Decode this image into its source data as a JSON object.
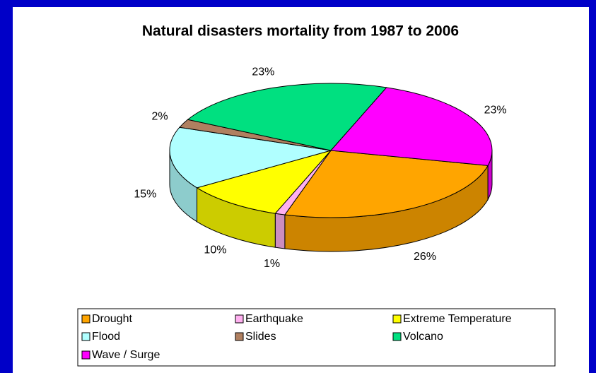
{
  "chart_data": {
    "type": "pie",
    "title": "Natural disasters mortality from 1987 to 2006",
    "categories": [
      "Drought",
      "Earthquake",
      "Extreme Temperature",
      "Flood",
      "Slides",
      "Volcano",
      "Wave / Surge"
    ],
    "values": [
      26,
      1,
      10,
      15,
      2,
      23,
      23
    ],
    "value_labels": [
      "26%",
      "1%",
      "10%",
      "15%",
      "2%",
      "23%",
      "23%"
    ],
    "colors": [
      "#FFA500",
      "#FFB0F0",
      "#FFFF00",
      "#B0FFFF",
      "#B08060",
      "#00E080",
      "#FF00FF"
    ],
    "legend": "bottom"
  }
}
